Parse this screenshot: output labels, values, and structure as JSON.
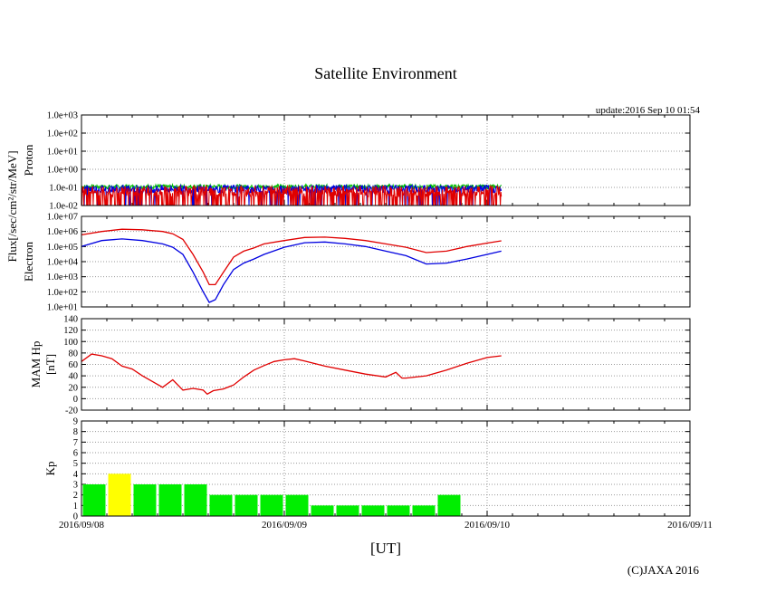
{
  "title": "Satellite Environment",
  "update_text": "update:2016 Sep 10 01:54",
  "xlabel": "[UT]",
  "copyright": "(C)JAXA 2016",
  "flux_label": "Flux[/sec/cm²/str/MeV]",
  "x_ticks": [
    "2016/09/08",
    "2016/09/09",
    "2016/09/10",
    "2016/09/11"
  ],
  "colors": {
    "red": "#e00000",
    "blue": "#0000e0",
    "green": "#00c000",
    "kp_green": "#00ee00",
    "kp_yellow": "#ffff00"
  },
  "chart_data": [
    {
      "type": "line",
      "name": "proton",
      "ylabel": "Proton",
      "yscale": "log",
      "ylim": [
        0.01,
        1000
      ],
      "yticks": [
        "1.0e-02",
        "1.0e-01",
        "1.0e+00",
        "1.0e+01",
        "1.0e+02",
        "1.0e+03"
      ],
      "grid": true,
      "x_range_days": [
        0,
        3
      ],
      "series": [
        {
          "color": "green",
          "baseline": 0.1,
          "spread_decades": 0.25,
          "end_day": 2.07
        },
        {
          "color": "blue",
          "baseline": 0.07,
          "spread_decades": 0.45,
          "end_day": 2.07
        },
        {
          "color": "red",
          "baseline": 0.05,
          "spread_decades": 0.6,
          "end_day": 2.07
        }
      ]
    },
    {
      "type": "line",
      "name": "electron",
      "ylabel": "Electron",
      "yscale": "log",
      "ylim": [
        10,
        10000000
      ],
      "yticks": [
        "1.0e+01",
        "1.0e+02",
        "1.0e+03",
        "1.0e+04",
        "1.0e+05",
        "1.0e+06",
        "1.0e+07"
      ],
      "grid": true,
      "series": [
        {
          "color": "red",
          "x": [
            0,
            0.1,
            0.2,
            0.3,
            0.4,
            0.45,
            0.5,
            0.55,
            0.6,
            0.63,
            0.66,
            0.7,
            0.75,
            0.8,
            0.85,
            0.9,
            1.0,
            1.1,
            1.2,
            1.3,
            1.4,
            1.5,
            1.6,
            1.7,
            1.8,
            1.9,
            2.0,
            2.07
          ],
          "y": [
            600000,
            1000000,
            1400000,
            1300000,
            1000000,
            700000,
            300000,
            30000,
            2000,
            300,
            300,
            2000,
            20000,
            50000,
            80000,
            150000,
            250000,
            400000,
            420000,
            350000,
            250000,
            150000,
            90000,
            40000,
            50000,
            100000,
            170000,
            240000
          ]
        },
        {
          "color": "blue",
          "x": [
            0,
            0.1,
            0.2,
            0.3,
            0.4,
            0.45,
            0.5,
            0.55,
            0.6,
            0.63,
            0.66,
            0.7,
            0.75,
            0.8,
            0.85,
            0.9,
            1.0,
            1.1,
            1.2,
            1.3,
            1.4,
            1.5,
            1.6,
            1.7,
            1.8,
            1.9,
            2.0,
            2.07
          ],
          "y": [
            100000,
            250000,
            320000,
            250000,
            150000,
            90000,
            30000,
            2000,
            100,
            20,
            30,
            300,
            3000,
            8000,
            15000,
            30000,
            90000,
            180000,
            200000,
            150000,
            100000,
            50000,
            25000,
            7000,
            8000,
            15000,
            30000,
            50000
          ]
        }
      ]
    },
    {
      "type": "line",
      "name": "mam-hp",
      "ylabel": "MAM Hp [nT]",
      "ylim": [
        -20,
        140
      ],
      "yticks": [
        -20,
        0,
        20,
        40,
        60,
        80,
        100,
        120,
        140
      ],
      "grid": true,
      "series": [
        {
          "color": "red",
          "x": [
            0,
            0.05,
            0.1,
            0.15,
            0.2,
            0.25,
            0.3,
            0.35,
            0.4,
            0.45,
            0.5,
            0.55,
            0.6,
            0.62,
            0.65,
            0.7,
            0.75,
            0.8,
            0.85,
            0.9,
            0.95,
            1.0,
            1.05,
            1.1,
            1.2,
            1.3,
            1.4,
            1.5,
            1.55,
            1.58,
            1.6,
            1.7,
            1.8,
            1.9,
            2.0,
            2.07
          ],
          "y": [
            65,
            78,
            75,
            70,
            57,
            52,
            40,
            30,
            20,
            33,
            15,
            18,
            15,
            8,
            14,
            17,
            24,
            38,
            50,
            58,
            65,
            68,
            70,
            66,
            57,
            50,
            43,
            38,
            46,
            36,
            36,
            40,
            50,
            62,
            72,
            75
          ]
        }
      ]
    },
    {
      "type": "bar",
      "name": "kp",
      "ylabel": "Kp",
      "ylim": [
        0,
        9
      ],
      "yticks": [
        0,
        1,
        2,
        3,
        4,
        5,
        6,
        7,
        8,
        9
      ],
      "grid": true,
      "bar_width_days": 0.125,
      "x_start_days": [
        0,
        0.125,
        0.25,
        0.375,
        0.5,
        0.625,
        0.75,
        0.875,
        1.0,
        1.125,
        1.25,
        1.375,
        1.5,
        1.625,
        1.75,
        1.875
      ],
      "values": [
        3,
        4,
        3,
        3,
        3,
        2,
        2,
        2,
        2,
        1,
        1,
        1,
        1,
        1,
        2,
        0
      ],
      "colors": [
        "kp_green",
        "kp_yellow",
        "kp_green",
        "kp_green",
        "kp_green",
        "kp_green",
        "kp_green",
        "kp_green",
        "kp_green",
        "kp_green",
        "kp_green",
        "kp_green",
        "kp_green",
        "kp_green",
        "kp_green",
        "kp_green"
      ]
    }
  ]
}
